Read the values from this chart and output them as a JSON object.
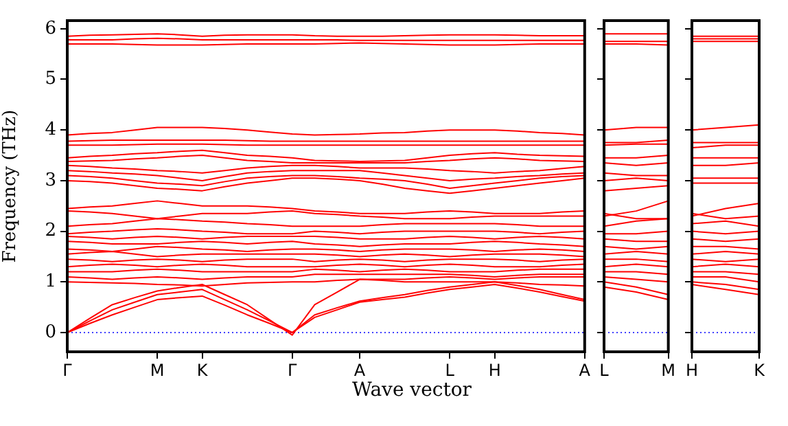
{
  "chart_data": [
    {
      "type": "line",
      "xlabel": "Wave vector",
      "ylabel": "Frequency (THz)",
      "marker": "none",
      "line_style": "solid",
      "grid": false,
      "legend": false,
      "categories": [
        "Γ",
        null,
        null,
        null,
        "M",
        null,
        "K",
        null,
        null,
        null,
        "Γ",
        null,
        null,
        "A",
        null,
        null,
        null,
        "L",
        null,
        "H",
        null,
        null,
        null,
        "A"
      ],
      "ylim": [
        -0.38,
        6.16
      ],
      "yticks": [
        0,
        1,
        2,
        3,
        4,
        5,
        6
      ],
      "ref_lines": [
        {
          "axis": "y",
          "value": 0,
          "color": "#0000ff",
          "line_style": "dotted"
        }
      ],
      "series": [
        {
          "color": "#ff0000",
          "values": [
            0,
            0.18,
            0.35,
            0.5,
            0.65,
            0.69,
            0.72,
            0.54,
            0.35,
            0.18,
            0,
            0.3,
            0.45,
            0.6,
            0.65,
            0.7,
            0.78,
            0.85,
            0.9,
            0.95,
            0.88,
            0.8,
            0.71,
            0.62
          ]
        },
        {
          "color": "#ff0000",
          "values": [
            0,
            0.23,
            0.45,
            0.6,
            0.75,
            0.8,
            0.85,
            0.65,
            0.45,
            0.23,
            0,
            0.35,
            0.49,
            0.62,
            0.69,
            0.75,
            0.83,
            0.9,
            0.95,
            1.0,
            0.93,
            0.85,
            0.75,
            0.65
          ]
        },
        {
          "color": "#ff0000",
          "values": [
            0,
            0.28,
            0.55,
            0.69,
            0.82,
            0.89,
            0.95,
            0.75,
            0.55,
            0.25,
            -0.05,
            0.55,
            0.8,
            1.05,
            1.03,
            1.0,
            1.0,
            1.0,
            1.0,
            1.0,
            0.98,
            0.95,
            0.94,
            0.92
          ]
        },
        {
          "color": "#ff0000",
          "values": [
            1.0,
            0.99,
            0.98,
            0.97,
            0.95,
            0.94,
            0.92,
            0.95,
            0.98,
            0.99,
            1.0,
            1.0,
            1.03,
            1.05,
            1.05,
            1.05,
            1.08,
            1.1,
            1.08,
            1.05,
            1.08,
            1.1,
            1.1,
            1.1
          ]
        },
        {
          "color": "#ff0000",
          "values": [
            1.1,
            1.08,
            1.05,
            1.08,
            1.1,
            1.08,
            1.05,
            1.08,
            1.1,
            1.1,
            1.1,
            1.15,
            1.15,
            1.15,
            1.15,
            1.15,
            1.15,
            1.15,
            1.13,
            1.1,
            1.13,
            1.15,
            1.15,
            1.15
          ]
        },
        {
          "color": "#ff0000",
          "values": [
            1.2,
            1.2,
            1.2,
            1.23,
            1.25,
            1.23,
            1.2,
            1.2,
            1.2,
            1.2,
            1.2,
            1.25,
            1.23,
            1.2,
            1.23,
            1.25,
            1.23,
            1.2,
            1.2,
            1.2,
            1.23,
            1.25,
            1.25,
            1.25
          ]
        },
        {
          "color": "#ff0000",
          "values": [
            1.3,
            1.33,
            1.35,
            1.33,
            1.3,
            1.33,
            1.35,
            1.33,
            1.3,
            1.3,
            1.3,
            1.3,
            1.33,
            1.35,
            1.33,
            1.3,
            1.33,
            1.35,
            1.33,
            1.3,
            1.3,
            1.3,
            1.33,
            1.35
          ]
        },
        {
          "color": "#ff0000",
          "values": [
            1.45,
            1.43,
            1.4,
            1.43,
            1.45,
            1.43,
            1.4,
            1.43,
            1.45,
            1.45,
            1.45,
            1.4,
            1.43,
            1.45,
            1.43,
            1.4,
            1.43,
            1.45,
            1.45,
            1.45,
            1.43,
            1.4,
            1.43,
            1.45
          ]
        },
        {
          "color": "#ff0000",
          "values": [
            1.55,
            1.58,
            1.6,
            1.55,
            1.5,
            1.53,
            1.55,
            1.55,
            1.55,
            1.55,
            1.55,
            1.55,
            1.53,
            1.5,
            1.53,
            1.55,
            1.53,
            1.5,
            1.53,
            1.55,
            1.55,
            1.55,
            1.53,
            1.5
          ]
        },
        {
          "color": "#ff0000",
          "values": [
            1.65,
            1.63,
            1.6,
            1.65,
            1.7,
            1.68,
            1.65,
            1.63,
            1.6,
            1.63,
            1.65,
            1.65,
            1.63,
            1.6,
            1.63,
            1.65,
            1.65,
            1.65,
            1.63,
            1.6,
            1.63,
            1.65,
            1.63,
            1.6
          ]
        },
        {
          "color": "#ff0000",
          "values": [
            1.8,
            1.78,
            1.75,
            1.75,
            1.75,
            1.78,
            1.8,
            1.78,
            1.75,
            1.78,
            1.8,
            1.75,
            1.73,
            1.7,
            1.73,
            1.75,
            1.75,
            1.75,
            1.78,
            1.8,
            1.78,
            1.75,
            1.73,
            1.7
          ]
        },
        {
          "color": "#ff0000",
          "values": [
            1.9,
            1.88,
            1.85,
            1.88,
            1.9,
            1.88,
            1.85,
            1.88,
            1.9,
            1.9,
            1.9,
            1.9,
            1.88,
            1.85,
            1.85,
            1.85,
            1.88,
            1.9,
            1.88,
            1.85,
            1.88,
            1.9,
            1.88,
            1.85
          ]
        },
        {
          "color": "#ff0000",
          "values": [
            1.95,
            1.98,
            2.0,
            2.03,
            2.05,
            2.03,
            2.0,
            1.98,
            1.95,
            1.95,
            1.95,
            2.0,
            1.98,
            1.95,
            1.98,
            2.0,
            2.0,
            2.0,
            2.0,
            2.0,
            1.98,
            1.95,
            1.98,
            2.0
          ]
        },
        {
          "color": "#ff0000",
          "values": [
            2.1,
            2.13,
            2.15,
            2.2,
            2.25,
            2.23,
            2.2,
            2.18,
            2.15,
            2.13,
            2.1,
            2.1,
            2.1,
            2.1,
            2.13,
            2.15,
            2.15,
            2.15,
            2.15,
            2.15,
            2.13,
            2.1,
            2.1,
            2.1
          ]
        },
        {
          "color": "#ff0000",
          "values": [
            2.4,
            2.38,
            2.35,
            2.3,
            2.25,
            2.3,
            2.35,
            2.35,
            2.35,
            2.38,
            2.4,
            2.35,
            2.33,
            2.3,
            2.28,
            2.25,
            2.25,
            2.25,
            2.28,
            2.3,
            2.3,
            2.3,
            2.3,
            2.3
          ]
        },
        {
          "color": "#ff0000",
          "values": [
            2.45,
            2.48,
            2.5,
            2.55,
            2.6,
            2.55,
            2.5,
            2.5,
            2.5,
            2.48,
            2.45,
            2.4,
            2.38,
            2.35,
            2.35,
            2.35,
            2.38,
            2.4,
            2.38,
            2.35,
            2.35,
            2.35,
            2.38,
            2.4
          ]
        },
        {
          "color": "#ff0000",
          "values": [
            3.0,
            2.98,
            2.95,
            2.9,
            2.85,
            2.83,
            2.8,
            2.88,
            2.95,
            3.0,
            3.05,
            3.05,
            3.03,
            3.0,
            2.93,
            2.85,
            2.8,
            2.75,
            2.8,
            2.85,
            2.9,
            2.95,
            3.0,
            3.05
          ]
        },
        {
          "color": "#ff0000",
          "values": [
            3.1,
            3.08,
            3.05,
            3.0,
            2.95,
            2.93,
            2.9,
            2.98,
            3.05,
            3.08,
            3.1,
            3.1,
            3.08,
            3.05,
            3.03,
            3.0,
            2.93,
            2.85,
            2.9,
            2.95,
            3.0,
            3.05,
            3.08,
            3.1
          ]
        },
        {
          "color": "#ff0000",
          "values": [
            3.2,
            3.18,
            3.15,
            3.13,
            3.1,
            3.05,
            3.0,
            3.08,
            3.15,
            3.18,
            3.2,
            3.2,
            3.2,
            3.2,
            3.15,
            3.1,
            3.05,
            3.0,
            3.03,
            3.05,
            3.08,
            3.1,
            3.13,
            3.15
          ]
        },
        {
          "color": "#ff0000",
          "values": [
            3.3,
            3.28,
            3.25,
            3.23,
            3.2,
            3.18,
            3.15,
            3.2,
            3.25,
            3.28,
            3.3,
            3.3,
            3.28,
            3.25,
            3.25,
            3.25,
            3.23,
            3.2,
            3.18,
            3.15,
            3.18,
            3.2,
            3.24,
            3.28
          ]
        },
        {
          "color": "#ff0000",
          "values": [
            3.38,
            3.39,
            3.4,
            3.43,
            3.45,
            3.48,
            3.5,
            3.45,
            3.4,
            3.38,
            3.35,
            3.35,
            3.35,
            3.35,
            3.35,
            3.35,
            3.38,
            3.4,
            3.43,
            3.45,
            3.43,
            3.4,
            3.39,
            3.38
          ]
        },
        {
          "color": "#ff0000",
          "values": [
            3.45,
            3.48,
            3.5,
            3.53,
            3.55,
            3.58,
            3.6,
            3.55,
            3.5,
            3.48,
            3.45,
            3.4,
            3.39,
            3.38,
            3.39,
            3.4,
            3.45,
            3.5,
            3.53,
            3.55,
            3.52,
            3.5,
            3.49,
            3.48
          ]
        },
        {
          "color": "#ff0000",
          "values": [
            3.7,
            3.7,
            3.7,
            3.71,
            3.72,
            3.72,
            3.72,
            3.71,
            3.7,
            3.7,
            3.7,
            3.7,
            3.7,
            3.7,
            3.7,
            3.7,
            3.7,
            3.7,
            3.7,
            3.7,
            3.7,
            3.7,
            3.7,
            3.7
          ]
        },
        {
          "color": "#ff0000",
          "values": [
            3.78,
            3.79,
            3.8,
            3.8,
            3.8,
            3.8,
            3.8,
            3.8,
            3.79,
            3.78,
            3.78,
            3.78,
            3.78,
            3.78,
            3.78,
            3.78,
            3.78,
            3.78,
            3.78,
            3.78,
            3.78,
            3.78,
            3.78,
            3.78
          ]
        },
        {
          "color": "#ff0000",
          "values": [
            3.9,
            3.93,
            3.95,
            4.0,
            4.05,
            4.05,
            4.05,
            4.03,
            4.0,
            3.96,
            3.92,
            3.9,
            3.91,
            3.92,
            3.94,
            3.95,
            3.98,
            4.0,
            4.0,
            4.0,
            3.98,
            3.95,
            3.93,
            3.9
          ]
        },
        {
          "color": "#ff0000",
          "values": [
            5.7,
            5.7,
            5.7,
            5.69,
            5.68,
            5.68,
            5.68,
            5.69,
            5.7,
            5.7,
            5.7,
            5.7,
            5.71,
            5.72,
            5.71,
            5.7,
            5.69,
            5.68,
            5.68,
            5.68,
            5.69,
            5.7,
            5.7,
            5.7
          ]
        },
        {
          "color": "#ff0000",
          "values": [
            5.78,
            5.78,
            5.78,
            5.8,
            5.81,
            5.8,
            5.78,
            5.78,
            5.78,
            5.78,
            5.78,
            5.78,
            5.78,
            5.77,
            5.77,
            5.77,
            5.77,
            5.77,
            5.77,
            5.77,
            5.77,
            5.77,
            5.77,
            5.77
          ]
        },
        {
          "color": "#ff0000",
          "values": [
            5.85,
            5.87,
            5.88,
            5.89,
            5.9,
            5.88,
            5.85,
            5.87,
            5.88,
            5.88,
            5.88,
            5.86,
            5.85,
            5.85,
            5.85,
            5.86,
            5.87,
            5.88,
            5.88,
            5.88,
            5.87,
            5.86,
            5.86,
            5.86
          ]
        }
      ]
    },
    {
      "type": "line",
      "marker": "none",
      "line_style": "solid",
      "grid": false,
      "legend": false,
      "tick_labels": "x",
      "categories": [
        "L",
        null,
        "M"
      ],
      "ylim": [
        -0.38,
        6.16
      ],
      "yticks": [
        {
          "value": 0,
          "label": null
        },
        {
          "value": 1,
          "label": null
        },
        {
          "value": 2,
          "label": null
        },
        {
          "value": 3,
          "label": null
        },
        {
          "value": 4,
          "label": null
        },
        {
          "value": 5,
          "label": null
        },
        {
          "value": 6,
          "label": null
        }
      ],
      "ref_lines": [
        {
          "axis": "y",
          "value": 0,
          "color": "#0000ff",
          "line_style": "dotted"
        }
      ],
      "series": [
        {
          "color": "#ff0000",
          "values": [
            0.9,
            0.8,
            0.65
          ]
        },
        {
          "color": "#ff0000",
          "values": [
            1.0,
            0.9,
            0.75
          ]
        },
        {
          "color": "#ff0000",
          "values": [
            1.1,
            1.05,
            1.0
          ]
        },
        {
          "color": "#ff0000",
          "values": [
            1.2,
            1.2,
            1.15
          ]
        },
        {
          "color": "#ff0000",
          "values": [
            1.3,
            1.35,
            1.3
          ]
        },
        {
          "color": "#ff0000",
          "values": [
            1.45,
            1.45,
            1.4
          ]
        },
        {
          "color": "#ff0000",
          "values": [
            1.55,
            1.6,
            1.55
          ]
        },
        {
          "color": "#ff0000",
          "values": [
            1.7,
            1.65,
            1.7
          ]
        },
        {
          "color": "#ff0000",
          "values": [
            1.85,
            1.8,
            1.8
          ]
        },
        {
          "color": "#ff0000",
          "values": [
            1.95,
            1.95,
            2.0
          ]
        },
        {
          "color": "#ff0000",
          "values": [
            2.1,
            2.2,
            2.25
          ]
        },
        {
          "color": "#ff0000",
          "values": [
            2.3,
            2.4,
            2.6
          ]
        },
        {
          "color": "#ff0000",
          "values": [
            2.35,
            2.25,
            2.25
          ]
        },
        {
          "color": "#ff0000",
          "values": [
            2.8,
            2.85,
            2.9
          ]
        },
        {
          "color": "#ff0000",
          "values": [
            3.0,
            3.05,
            3.0
          ]
        },
        {
          "color": "#ff0000",
          "values": [
            3.15,
            3.1,
            3.1
          ]
        },
        {
          "color": "#ff0000",
          "values": [
            3.35,
            3.3,
            3.35
          ]
        },
        {
          "color": "#ff0000",
          "values": [
            3.45,
            3.45,
            3.5
          ]
        },
        {
          "color": "#ff0000",
          "values": [
            3.7,
            3.72,
            3.72
          ]
        },
        {
          "color": "#ff0000",
          "values": [
            3.75,
            3.75,
            3.8
          ]
        },
        {
          "color": "#ff0000",
          "values": [
            4.0,
            4.05,
            4.05
          ]
        },
        {
          "color": "#ff0000",
          "values": [
            5.7,
            5.7,
            5.68
          ]
        },
        {
          "color": "#ff0000",
          "values": [
            5.75,
            5.75,
            5.75
          ]
        },
        {
          "color": "#ff0000",
          "values": [
            5.9,
            5.9,
            5.9
          ]
        }
      ]
    },
    {
      "type": "line",
      "marker": "none",
      "line_style": "solid",
      "grid": false,
      "legend": false,
      "tick_labels": "x",
      "categories": [
        "H",
        null,
        "K"
      ],
      "ylim": [
        -0.38,
        6.16
      ],
      "yticks": [
        {
          "value": 0,
          "label": null
        },
        {
          "value": 1,
          "label": null
        },
        {
          "value": 2,
          "label": null
        },
        {
          "value": 3,
          "label": null
        },
        {
          "value": 4,
          "label": null
        },
        {
          "value": 5,
          "label": null
        },
        {
          "value": 6,
          "label": null
        }
      ],
      "ref_lines": [
        {
          "axis": "y",
          "value": 0,
          "color": "#0000ff",
          "line_style": "dotted"
        }
      ],
      "series": [
        {
          "color": "#ff0000",
          "values": [
            0.95,
            0.85,
            0.75
          ]
        },
        {
          "color": "#ff0000",
          "values": [
            1.0,
            0.95,
            0.85
          ]
        },
        {
          "color": "#ff0000",
          "values": [
            1.1,
            1.1,
            1.0
          ]
        },
        {
          "color": "#ff0000",
          "values": [
            1.2,
            1.2,
            1.15
          ]
        },
        {
          "color": "#ff0000",
          "values": [
            1.3,
            1.35,
            1.3
          ]
        },
        {
          "color": "#ff0000",
          "values": [
            1.45,
            1.4,
            1.45
          ]
        },
        {
          "color": "#ff0000",
          "values": [
            1.55,
            1.6,
            1.55
          ]
        },
        {
          "color": "#ff0000",
          "values": [
            1.7,
            1.7,
            1.65
          ]
        },
        {
          "color": "#ff0000",
          "values": [
            1.85,
            1.8,
            1.85
          ]
        },
        {
          "color": "#ff0000",
          "values": [
            2.0,
            1.95,
            2.0
          ]
        },
        {
          "color": "#ff0000",
          "values": [
            2.15,
            2.2,
            2.1
          ]
        },
        {
          "color": "#ff0000",
          "values": [
            2.3,
            2.45,
            2.55
          ]
        },
        {
          "color": "#ff0000",
          "values": [
            2.35,
            2.25,
            2.3
          ]
        },
        {
          "color": "#ff0000",
          "values": [
            2.95,
            2.95,
            2.95
          ]
        },
        {
          "color": "#ff0000",
          "values": [
            3.05,
            3.05,
            3.05
          ]
        },
        {
          "color": "#ff0000",
          "values": [
            3.3,
            3.3,
            3.35
          ]
        },
        {
          "color": "#ff0000",
          "values": [
            3.45,
            3.45,
            3.45
          ]
        },
        {
          "color": "#ff0000",
          "values": [
            3.65,
            3.7,
            3.7
          ]
        },
        {
          "color": "#ff0000",
          "values": [
            3.75,
            3.75,
            3.75
          ]
        },
        {
          "color": "#ff0000",
          "values": [
            4.0,
            4.05,
            4.1
          ]
        },
        {
          "color": "#ff0000",
          "values": [
            5.75,
            5.75,
            5.75
          ]
        },
        {
          "color": "#ff0000",
          "values": [
            5.8,
            5.8,
            5.8
          ]
        },
        {
          "color": "#ff0000",
          "values": [
            5.85,
            5.85,
            5.85
          ]
        }
      ]
    }
  ]
}
